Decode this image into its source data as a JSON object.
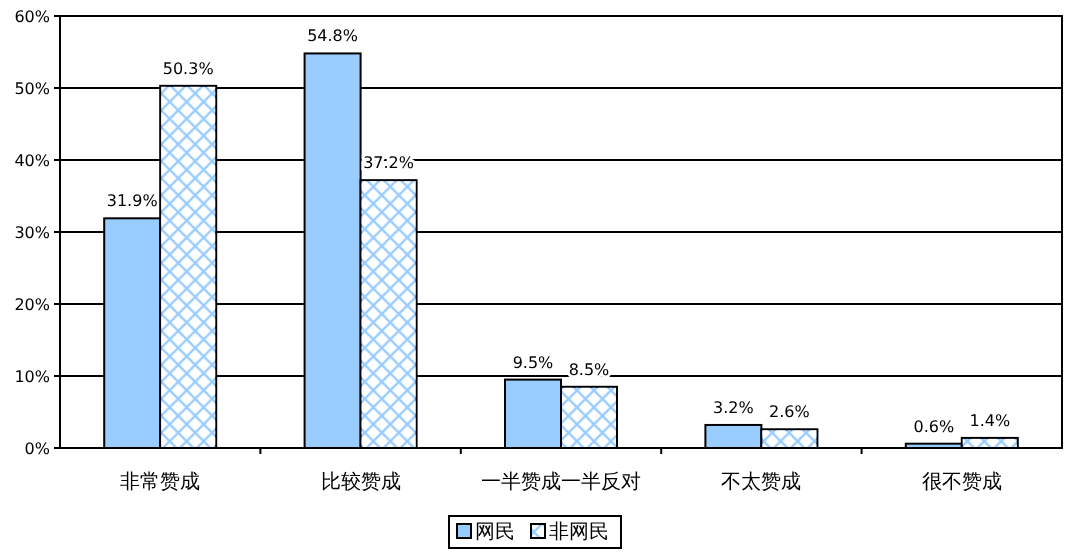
{
  "chart_data": {
    "type": "bar",
    "categories": [
      "非常赞成",
      "比较赞成",
      "一半赞成一半反对",
      "不太赞成",
      "很不赞成"
    ],
    "series": [
      {
        "name": "网民",
        "color": "#99ccff",
        "values": [
          31.9,
          54.8,
          9.5,
          3.2,
          0.6
        ],
        "value_labels": [
          "31.9%",
          "54.8%",
          "9.5%",
          "3.2%",
          "0.6%"
        ]
      },
      {
        "name": "非网民",
        "color": "#99ccff",
        "values": [
          50.3,
          37.2,
          8.5,
          2.6,
          1.4
        ],
        "value_labels": [
          "50.3%",
          "37.2%",
          "8.5%",
          "2.6%",
          "1.4%"
        ]
      }
    ],
    "ylim": [
      0,
      60
    ],
    "yticks": [
      {
        "value": 0,
        "label": "0%"
      },
      {
        "value": 10,
        "label": "10%"
      },
      {
        "value": 20,
        "label": "20%"
      },
      {
        "value": 30,
        "label": "30%"
      },
      {
        "value": 40,
        "label": "40%"
      },
      {
        "value": 50,
        "label": "50%"
      },
      {
        "value": 60,
        "label": "60%"
      }
    ],
    "grid": "y",
    "legend": "bottom"
  }
}
